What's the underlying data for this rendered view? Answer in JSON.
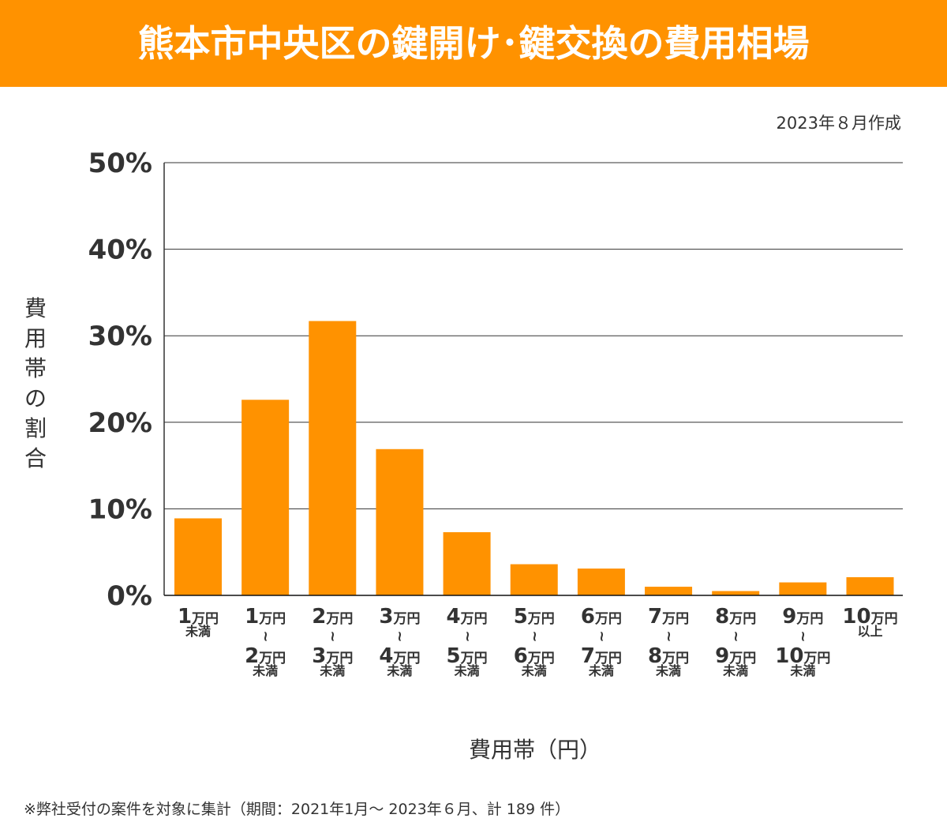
{
  "header": {
    "title": "熊本市中央区の鍵開け･鍵交換の費用相場"
  },
  "date_note": "2023年８月作成",
  "footnote": "※弊社受付の案件を対象に集計（期間：2021年1月～ 2023年６月、計 189 件）",
  "chart_data": {
    "type": "bar",
    "title": "熊本市中央区の鍵開け･鍵交換の費用相場",
    "xlabel": "費用帯（円）",
    "ylabel": "費用帯の割合",
    "ylim": [
      0,
      50
    ],
    "yticks": [
      "0%",
      "10%",
      "20%",
      "30%",
      "40%",
      "50%"
    ],
    "grid": true,
    "bar_color": "#ff9200",
    "categories": [
      [
        "1万円",
        "未満"
      ],
      [
        "1万円",
        "〜",
        "2万円",
        "未満"
      ],
      [
        "2万円",
        "〜",
        "3万円",
        "未満"
      ],
      [
        "3万円",
        "〜",
        "4万円",
        "未満"
      ],
      [
        "4万円",
        "〜",
        "5万円",
        "未満"
      ],
      [
        "5万円",
        "〜",
        "6万円",
        "未満"
      ],
      [
        "6万円",
        "〜",
        "7万円",
        "未満"
      ],
      [
        "7万円",
        "〜",
        "8万円",
        "未満"
      ],
      [
        "8万円",
        "〜",
        "9万円",
        "未満"
      ],
      [
        "9万円",
        "〜",
        "10万円",
        "未満"
      ],
      [
        "10万円",
        "以上"
      ]
    ],
    "values": [
      8.9,
      22.6,
      31.7,
      16.9,
      7.3,
      3.6,
      3.1,
      1.0,
      0.5,
      1.5,
      2.1
    ]
  }
}
